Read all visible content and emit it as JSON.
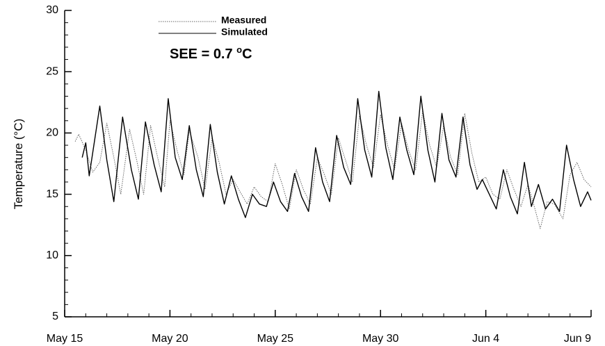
{
  "chart_data": {
    "type": "line",
    "title": "",
    "xlabel": "",
    "ylabel": "Temperature (°C)",
    "ylim": [
      5,
      30
    ],
    "yticks": [
      5,
      10,
      15,
      20,
      25,
      30
    ],
    "xlim": [
      "2000-05-15",
      "2000-06-09"
    ],
    "xticks": [
      {
        "date": "2000-05-15",
        "label": "May 15"
      },
      {
        "date": "2000-05-20",
        "label": "May 20"
      },
      {
        "date": "2000-05-25",
        "label": "May 25"
      },
      {
        "date": "2000-05-30",
        "label": "May 30"
      },
      {
        "date": "2000-06-04",
        "label": "Jun 4"
      },
      {
        "date": "2000-06-09",
        "label": "Jun 9"
      }
    ],
    "grid": false,
    "legend_position": "top-left",
    "annotation": {
      "prefix": "SEE = 0.7 ",
      "degree": "o",
      "unit": "C"
    },
    "series": [
      {
        "name": "Measured",
        "style": "dotted",
        "color": "#666666",
        "points": [
          [
            "2000-05-15 12:00",
            19.3
          ],
          [
            "2000-05-15 16:00",
            19.9
          ],
          [
            "2000-05-16 00:00",
            18.6
          ],
          [
            "2000-05-16 08:00",
            16.8
          ],
          [
            "2000-05-16 16:00",
            17.6
          ],
          [
            "2000-05-17 00:00",
            20.8
          ],
          [
            "2000-05-17 08:00",
            18.0
          ],
          [
            "2000-05-17 16:00",
            15.0
          ],
          [
            "2000-05-18 02:00",
            20.3
          ],
          [
            "2000-05-18 10:00",
            17.8
          ],
          [
            "2000-05-18 18:00",
            15.0
          ],
          [
            "2000-05-19 02:00",
            20.6
          ],
          [
            "2000-05-19 10:00",
            18.0
          ],
          [
            "2000-05-19 18:00",
            15.6
          ],
          [
            "2000-05-20 00:00",
            21.0
          ],
          [
            "2000-05-20 08:00",
            18.6
          ],
          [
            "2000-05-20 16:00",
            16.6
          ],
          [
            "2000-05-20 22:00",
            20.2
          ],
          [
            "2000-05-21 08:00",
            18.0
          ],
          [
            "2000-05-21 16:00",
            15.4
          ],
          [
            "2000-05-22 00:00",
            19.6
          ],
          [
            "2000-05-22 08:00",
            17.6
          ],
          [
            "2000-05-22 16:00",
            15.0
          ],
          [
            "2000-05-23 00:00",
            16.2
          ],
          [
            "2000-05-23 08:00",
            15.2
          ],
          [
            "2000-05-23 16:00",
            14.2
          ],
          [
            "2000-05-24 00:00",
            15.6
          ],
          [
            "2000-05-24 08:00",
            14.8
          ],
          [
            "2000-05-24 16:00",
            14.4
          ],
          [
            "2000-05-25 00:00",
            17.5
          ],
          [
            "2000-05-25 08:00",
            15.8
          ],
          [
            "2000-05-25 16:00",
            13.8
          ],
          [
            "2000-05-26 00:00",
            17.0
          ],
          [
            "2000-05-26 08:00",
            15.4
          ],
          [
            "2000-05-26 16:00",
            14.2
          ],
          [
            "2000-05-27 00:00",
            18.0
          ],
          [
            "2000-05-27 08:00",
            16.6
          ],
          [
            "2000-05-27 16:00",
            15.0
          ],
          [
            "2000-05-28 00:00",
            19.6
          ],
          [
            "2000-05-28 08:00",
            17.8
          ],
          [
            "2000-05-28 16:00",
            16.0
          ],
          [
            "2000-05-29 00:00",
            21.4
          ],
          [
            "2000-05-29 08:00",
            19.0
          ],
          [
            "2000-05-29 16:00",
            17.2
          ],
          [
            "2000-05-30 00:00",
            21.5
          ],
          [
            "2000-05-30 08:00",
            19.0
          ],
          [
            "2000-05-30 16:00",
            17.0
          ],
          [
            "2000-05-31 00:00",
            20.8
          ],
          [
            "2000-05-31 08:00",
            18.6
          ],
          [
            "2000-05-31 16:00",
            17.0
          ],
          [
            "2000-06-01 00:00",
            21.8
          ],
          [
            "2000-06-01 08:00",
            19.0
          ],
          [
            "2000-06-01 16:00",
            17.2
          ],
          [
            "2000-06-02 00:00",
            20.6
          ],
          [
            "2000-06-02 08:00",
            18.0
          ],
          [
            "2000-06-02 16:00",
            16.6
          ],
          [
            "2000-06-03 00:00",
            21.6
          ],
          [
            "2000-06-03 08:00",
            18.4
          ],
          [
            "2000-06-03 16:00",
            16.0
          ],
          [
            "2000-06-04 00:00",
            16.4
          ],
          [
            "2000-06-04 08:00",
            15.0
          ],
          [
            "2000-06-04 16:00",
            14.6
          ],
          [
            "2000-06-05 00:00",
            17.0
          ],
          [
            "2000-06-05 08:00",
            15.4
          ],
          [
            "2000-06-05 16:00",
            14.0
          ],
          [
            "2000-06-06 00:00",
            15.8
          ],
          [
            "2000-06-06 08:00",
            13.8
          ],
          [
            "2000-06-06 14:00",
            12.2
          ],
          [
            "2000-06-06 22:00",
            14.4
          ],
          [
            "2000-06-07 06:00",
            14.2
          ],
          [
            "2000-06-07 16:00",
            13.0
          ],
          [
            "2000-06-08 00:00",
            16.6
          ],
          [
            "2000-06-08 08:00",
            17.6
          ],
          [
            "2000-06-08 16:00",
            16.2
          ],
          [
            "2000-06-09 00:00",
            15.6
          ]
        ]
      },
      {
        "name": "Simulated",
        "style": "solid",
        "color": "#000000",
        "points": [
          [
            "2000-05-15 20:00",
            18.0
          ],
          [
            "2000-05-16 00:00",
            19.2
          ],
          [
            "2000-05-16 04:00",
            16.5
          ],
          [
            "2000-05-16 16:00",
            22.2
          ],
          [
            "2000-05-17 00:00",
            17.8
          ],
          [
            "2000-05-17 08:00",
            14.4
          ],
          [
            "2000-05-17 18:00",
            21.3
          ],
          [
            "2000-05-18 04:00",
            17.0
          ],
          [
            "2000-05-18 12:00",
            14.6
          ],
          [
            "2000-05-18 20:00",
            20.9
          ],
          [
            "2000-05-19 06:00",
            17.4
          ],
          [
            "2000-05-19 14:00",
            15.2
          ],
          [
            "2000-05-19 22:00",
            22.8
          ],
          [
            "2000-05-20 06:00",
            18.0
          ],
          [
            "2000-05-20 14:00",
            16.2
          ],
          [
            "2000-05-20 22:00",
            20.6
          ],
          [
            "2000-05-21 06:00",
            17.0
          ],
          [
            "2000-05-21 14:00",
            14.8
          ],
          [
            "2000-05-21 22:00",
            20.7
          ],
          [
            "2000-05-22 06:00",
            16.8
          ],
          [
            "2000-05-22 14:00",
            14.2
          ],
          [
            "2000-05-22 22:00",
            16.5
          ],
          [
            "2000-05-23 06:00",
            14.6
          ],
          [
            "2000-05-23 14:00",
            13.1
          ],
          [
            "2000-05-23 22:00",
            15.0
          ],
          [
            "2000-05-24 06:00",
            14.2
          ],
          [
            "2000-05-24 14:00",
            14.0
          ],
          [
            "2000-05-24 22:00",
            16.0
          ],
          [
            "2000-05-25 06:00",
            14.4
          ],
          [
            "2000-05-25 14:00",
            13.6
          ],
          [
            "2000-05-25 22:00",
            16.7
          ],
          [
            "2000-05-26 06:00",
            14.8
          ],
          [
            "2000-05-26 14:00",
            13.6
          ],
          [
            "2000-05-26 22:00",
            18.8
          ],
          [
            "2000-05-27 06:00",
            16.0
          ],
          [
            "2000-05-27 14:00",
            14.4
          ],
          [
            "2000-05-27 22:00",
            19.8
          ],
          [
            "2000-05-28 06:00",
            17.2
          ],
          [
            "2000-05-28 14:00",
            15.8
          ],
          [
            "2000-05-28 22:00",
            22.8
          ],
          [
            "2000-05-29 06:00",
            18.6
          ],
          [
            "2000-05-29 14:00",
            16.4
          ],
          [
            "2000-05-29 22:00",
            23.4
          ],
          [
            "2000-05-30 06:00",
            18.8
          ],
          [
            "2000-05-30 14:00",
            16.2
          ],
          [
            "2000-05-30 22:00",
            21.3
          ],
          [
            "2000-05-31 06:00",
            18.6
          ],
          [
            "2000-05-31 14:00",
            16.6
          ],
          [
            "2000-05-31 22:00",
            23.0
          ],
          [
            "2000-06-01 06:00",
            18.6
          ],
          [
            "2000-06-01 14:00",
            16.0
          ],
          [
            "2000-06-01 22:00",
            21.6
          ],
          [
            "2000-06-02 06:00",
            17.8
          ],
          [
            "2000-06-02 14:00",
            16.4
          ],
          [
            "2000-06-02 22:00",
            21.3
          ],
          [
            "2000-06-03 06:00",
            17.4
          ],
          [
            "2000-06-03 14:00",
            15.4
          ],
          [
            "2000-06-03 20:00",
            16.2
          ],
          [
            "2000-06-04 04:00",
            15.0
          ],
          [
            "2000-06-04 12:00",
            13.8
          ],
          [
            "2000-06-04 20:00",
            17.0
          ],
          [
            "2000-06-05 04:00",
            14.8
          ],
          [
            "2000-06-05 12:00",
            13.4
          ],
          [
            "2000-06-05 20:00",
            17.6
          ],
          [
            "2000-06-06 04:00",
            14.0
          ],
          [
            "2000-06-06 12:00",
            15.8
          ],
          [
            "2000-06-06 20:00",
            13.8
          ],
          [
            "2000-06-07 04:00",
            14.6
          ],
          [
            "2000-06-07 12:00",
            13.6
          ],
          [
            "2000-06-07 20:00",
            19.0
          ],
          [
            "2000-06-08 04:00",
            16.2
          ],
          [
            "2000-06-08 12:00",
            14.0
          ],
          [
            "2000-06-08 20:00",
            15.2
          ],
          [
            "2000-06-09 00:00",
            14.5
          ]
        ]
      }
    ]
  }
}
